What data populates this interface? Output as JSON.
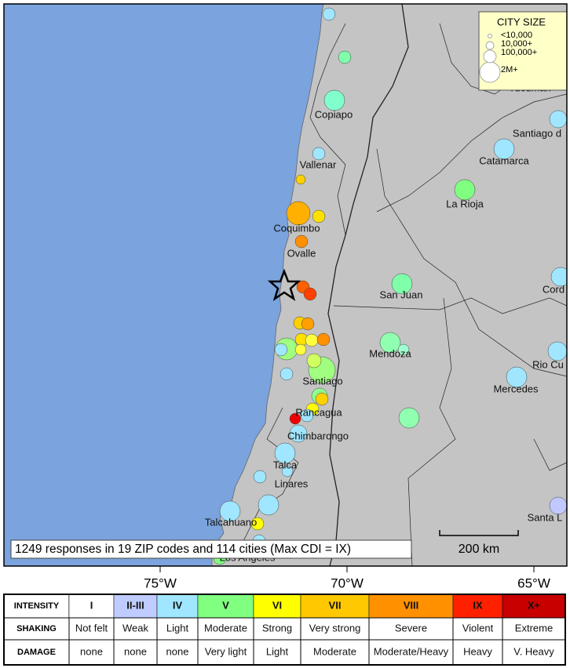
{
  "map": {
    "cities": [
      "Copiapo",
      "Vallenar",
      "Coquimbo",
      "Ovalle",
      "San Juan",
      "Mendoza",
      "Santiago",
      "Rancagua",
      "Chimbarongo",
      "Talca",
      "Linares",
      "Talcahuano",
      "Los Angeles",
      "La Rioja",
      "Catamarca",
      "Santiago d",
      "Tucuman",
      "Cord",
      "Rio Cu",
      "Mercedes",
      "Santa L"
    ],
    "longitudes": [
      "75°W",
      "70°W",
      "65°W"
    ],
    "summary": "1249 responses in 19 ZIP codes and 114 cities (Max CDI = IX)",
    "scale": "200 km",
    "city_size": {
      "title": "CITY SIZE",
      "entries": [
        "<10,000",
        "10,000+",
        "100,000+",
        "2M+"
      ]
    }
  },
  "legend": {
    "row_labels": [
      "INTENSITY",
      "SHAKING",
      "DAMAGE"
    ],
    "intensity": [
      "I",
      "II-III",
      "IV",
      "V",
      "VI",
      "VII",
      "VIII",
      "IX",
      "X+"
    ],
    "shaking": [
      "Not felt",
      "Weak",
      "Light",
      "Moderate",
      "Strong",
      "Very strong",
      "Severe",
      "Violent",
      "Extreme"
    ],
    "damage": [
      "none",
      "none",
      "none",
      "Very light",
      "Light",
      "Moderate",
      "Moderate/Heavy",
      "Heavy",
      "V. Heavy"
    ]
  }
}
